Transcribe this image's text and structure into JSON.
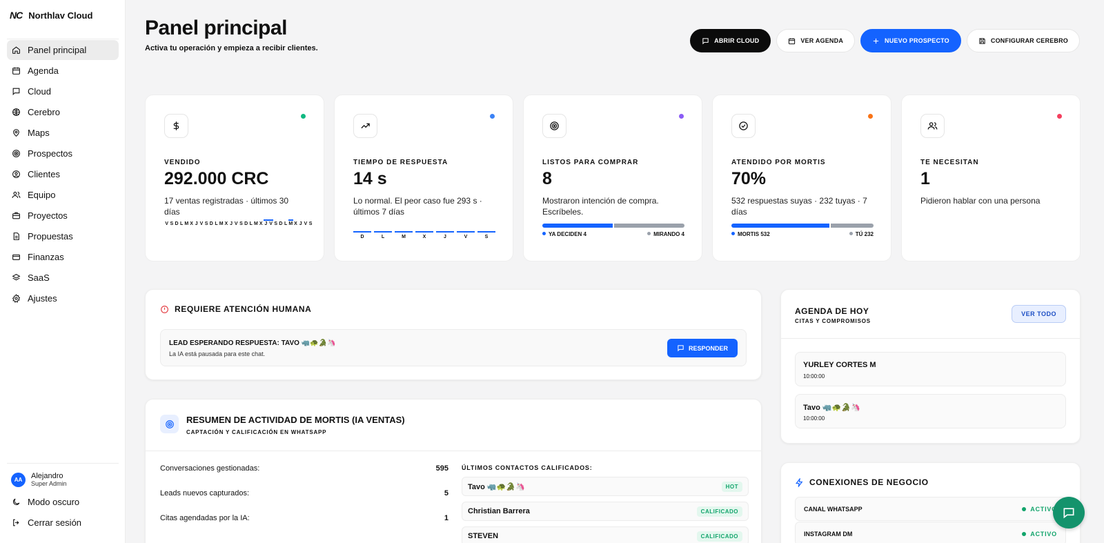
{
  "brand": {
    "logo": "NC",
    "name": "Northlav Cloud"
  },
  "sidebar": {
    "items": [
      {
        "label": "Panel principal",
        "icon": "home-icon"
      },
      {
        "label": "Agenda",
        "icon": "calendar-icon"
      },
      {
        "label": "Cloud",
        "icon": "chat-icon"
      },
      {
        "label": "Cerebro",
        "icon": "brain-icon"
      },
      {
        "label": "Maps",
        "icon": "map-pin-icon"
      },
      {
        "label": "Prospectos",
        "icon": "target-icon"
      },
      {
        "label": "Clientes",
        "icon": "user-circle-icon"
      },
      {
        "label": "Equipo",
        "icon": "users-icon"
      },
      {
        "label": "Proyectos",
        "icon": "briefcase-icon"
      },
      {
        "label": "Propuestas",
        "icon": "document-icon"
      },
      {
        "label": "Finanzas",
        "icon": "credit-card-icon"
      },
      {
        "label": "SaaS",
        "icon": "layers-icon"
      },
      {
        "label": "Ajustes",
        "icon": "gear-icon"
      }
    ],
    "user": {
      "initials": "AA",
      "name": "Alejandro",
      "role": "Super Admin"
    },
    "dark_mode": "Modo oscuro",
    "logout": "Cerrar sesión"
  },
  "header": {
    "title": "Panel principal",
    "subtitle": "Activa tu operación y empieza a recibir clientes.",
    "actions": {
      "open_cloud": "ABRIR CLOUD",
      "agenda": "VER AGENDA",
      "new_prospect": "NUEVO PROSPECTO",
      "configure": "CONFIGURAR CEREBRO"
    }
  },
  "kpis": [
    {
      "label": "VENDIDO",
      "value": "292.000 CRC",
      "desc": "17 ventas registradas · últimos 30 días",
      "dot": "#10b981",
      "icon": "dollar-icon"
    },
    {
      "label": "TIEMPO DE RESPUESTA",
      "value": "14 s",
      "desc": "Lo normal. El peor caso fue 293 s · últimos 7 días",
      "dot": "#3b82f6",
      "icon": "trending-up-icon"
    },
    {
      "label": "LISTOS PARA COMPRAR",
      "value": "8",
      "desc": "Mostraron intención de compra. Escríbeles.",
      "dot": "#8b5cf6",
      "icon": "target-icon"
    },
    {
      "label": "ATENDIDO POR MORTIS",
      "value": "70%",
      "desc": "532 respuestas suyas · 232 tuyas · 7 días",
      "dot": "#f97316",
      "icon": "check-circle-icon"
    },
    {
      "label": "TE NECESITAN",
      "value": "1",
      "desc": "Pidieron hablar con una persona",
      "dot": "#f43f5e",
      "icon": "users-icon"
    }
  ],
  "sparkline_days": [
    "V",
    "S",
    "D",
    "L",
    "M",
    "X",
    "J",
    "V",
    "S",
    "D",
    "L",
    "M",
    "X",
    "J",
    "V",
    "S",
    "D",
    "L",
    "M",
    "X",
    "J",
    "V",
    "S",
    "D",
    "L",
    "M",
    "X",
    "J",
    "V",
    "S"
  ],
  "sparkline_active": [
    false,
    false,
    false,
    false,
    false,
    false,
    false,
    false,
    false,
    false,
    false,
    false,
    false,
    false,
    false,
    false,
    false,
    false,
    false,
    false,
    true,
    true,
    false,
    false,
    false,
    true,
    false,
    false,
    false,
    false
  ],
  "week_days": [
    "D",
    "L",
    "M",
    "X",
    "J",
    "V",
    "S"
  ],
  "ready_split": {
    "left_label": "YA DECIDEN 4",
    "right_label": "MIRANDO 4",
    "left": 4,
    "right": 4
  },
  "mortis_split": {
    "left_label": "MORTIS 532",
    "right_label": "TÚ 232",
    "left": 532,
    "right": 232
  },
  "attention": {
    "title": "REQUIERE ATENCIÓN HUMANA",
    "lead_title": "LEAD ESPERANDO RESPUESTA: TAVO 🦏🐢🐊🦄",
    "lead_sub": "La IA está pausada para este chat.",
    "respond": "RESPONDER"
  },
  "summary": {
    "title": "RESUMEN DE ACTIVIDAD DE MORTIS (IA VENTAS)",
    "subtitle": "CAPTACIÓN Y CALIFICACIÓN EN WHATSAPP",
    "stats": [
      {
        "label": "Conversaciones gestionadas:",
        "value": "595"
      },
      {
        "label": "Leads nuevos capturados:",
        "value": "5"
      },
      {
        "label": "Citas agendadas por la IA:",
        "value": "1"
      }
    ],
    "contacts_title": "ÚLTIMOS CONTACTOS CALIFICADOS:",
    "contacts": [
      {
        "name": "Tavo 🦏🐢🐊🦄",
        "badge": "HOT"
      },
      {
        "name": "Christian Barrera",
        "badge": "CALIFICADO"
      },
      {
        "name": "STEVEN",
        "badge": "CALIFICADO"
      }
    ]
  },
  "agenda": {
    "title": "AGENDA DE HOY",
    "subtitle": "CITAS Y COMPROMISOS",
    "view_all": "VER TODO",
    "items": [
      {
        "name": "YURLEY CORTES M",
        "time": "10:00:00"
      },
      {
        "name": "Tavo 🦏🐢🐊🦄",
        "time": "10:00:00"
      }
    ]
  },
  "connections": {
    "title": "CONEXIONES DE NEGOCIO",
    "items": [
      {
        "name": "CANAL WHATSAPP",
        "status": "ACTIVO"
      },
      {
        "name": "INSTAGRAM DM",
        "status": "ACTIVO"
      }
    ]
  },
  "colors": {
    "accent": "#1463ff",
    "success": "#12a46b",
    "fab": "#14936c"
  }
}
